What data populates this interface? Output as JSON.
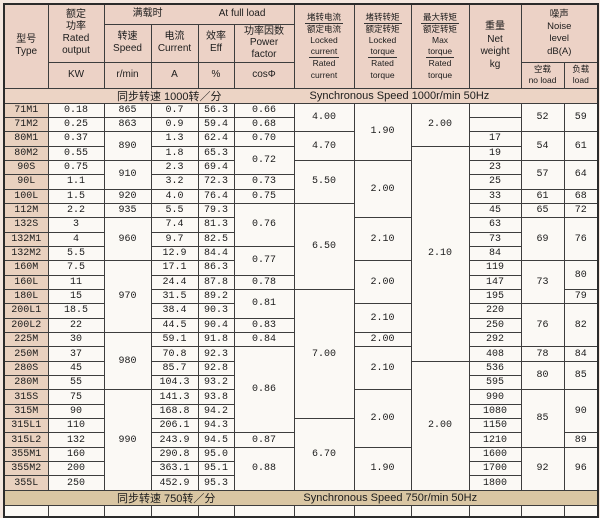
{
  "doc": {
    "kind": "motor-specification-table"
  },
  "colors": {
    "header_bg": "#ecd2c6",
    "type_col_bg": "#e9d1bf",
    "cell_bg": "#fbf9f5",
    "band_top_bg": "#ecd4c5",
    "band_bottom_bg": "#d9c6a3",
    "border": "#3d3d3d",
    "page_bg": "#f4e7df"
  },
  "header": {
    "type": {
      "cn": "型号",
      "en": "Type"
    },
    "rated": {
      "cn1": "额定",
      "cn2": "功率",
      "en1": "Rated",
      "en2": "output",
      "unit": "KW"
    },
    "full_load": {
      "cn": "满载时",
      "en": "At full load"
    },
    "speed": {
      "cn": "转速",
      "en": "Speed",
      "unit": "r/min"
    },
    "current": {
      "cn": "电流",
      "en": "Current",
      "unit": "A"
    },
    "eff": {
      "cn": "效率",
      "en": "Eff",
      "unit": "%"
    },
    "pf": {
      "cn": "功率因数",
      "en1": "Power",
      "en2": "factor",
      "unit": "cosΦ"
    },
    "locked_current": {
      "cn_num": "堵转电流",
      "cn_den": "额定电流",
      "en1": "Locked",
      "en2": "current",
      "en3": "Rated",
      "en4": "current"
    },
    "locked_torque": {
      "cn_num": "堵转转矩",
      "cn_den": "额定转矩",
      "en1": "Locked",
      "en2": "torque",
      "en3": "Rated",
      "en4": "torque"
    },
    "max_torque": {
      "cn_num": "最大转矩",
      "cn_den": "额定转矩",
      "en1": "Max",
      "en2": "torque",
      "en3": "Rated",
      "en4": "torque"
    },
    "weight": {
      "cn": "重量",
      "en1": "Net",
      "en2": "weight",
      "unit": "kg"
    },
    "noise": {
      "cn": "噪声",
      "en1": "Noise",
      "en2": "level",
      "en3": "dB(A)",
      "no_load_cn": "空载",
      "no_load_en": "no load",
      "load_cn": "负载",
      "load_en": "load"
    }
  },
  "bands": {
    "top": {
      "cn": "同步转速  1000转／分",
      "en": "Synchronous Speed 1000r/min  50Hz"
    },
    "bottom": {
      "cn": "同步转速  750转／分",
      "en": "Synchronous Speed 750r/min  50Hz"
    }
  },
  "rows": [
    {
      "type": "71M1",
      "kw": "0.18",
      "current": "0.7",
      "eff": "56.3",
      "w": ""
    },
    {
      "type": "71M2",
      "kw": "0.25",
      "current": "0.9",
      "eff": "59.4",
      "w": ""
    },
    {
      "type": "80M1",
      "kw": "0.37",
      "current": "1.3",
      "eff": "62.4",
      "w": "17"
    },
    {
      "type": "80M2",
      "kw": "0.55",
      "current": "1.8",
      "eff": "65.3",
      "w": "19"
    },
    {
      "type": "90S",
      "kw": "0.75",
      "current": "2.3",
      "eff": "69.4",
      "w": "23"
    },
    {
      "type": "90L",
      "kw": "1.1",
      "current": "3.2",
      "eff": "72.3",
      "w": "25"
    },
    {
      "type": "100L",
      "kw": "1.5",
      "current": "4.0",
      "eff": "76.4",
      "w": "33"
    },
    {
      "type": "112M",
      "kw": "2.2",
      "current": "5.5",
      "eff": "79.3",
      "w": "45"
    },
    {
      "type": "132S",
      "kw": "3",
      "current": "7.4",
      "eff": "81.3",
      "w": "63"
    },
    {
      "type": "132M1",
      "kw": "4",
      "current": "9.7",
      "eff": "82.5",
      "w": "73"
    },
    {
      "type": "132M2",
      "kw": "5.5",
      "current": "12.9",
      "eff": "84.4",
      "w": "84"
    },
    {
      "type": "160M",
      "kw": "7.5",
      "current": "17.1",
      "eff": "86.3",
      "w": "119"
    },
    {
      "type": "160L",
      "kw": "11",
      "current": "24.4",
      "eff": "87.8",
      "w": "147"
    },
    {
      "type": "180L",
      "kw": "15",
      "current": "31.5",
      "eff": "89.2",
      "w": "195"
    },
    {
      "type": "200L1",
      "kw": "18.5",
      "current": "38.4",
      "eff": "90.3",
      "w": "220"
    },
    {
      "type": "200L2",
      "kw": "22",
      "current": "44.5",
      "eff": "90.4",
      "w": "250"
    },
    {
      "type": "225M",
      "kw": "30",
      "current": "59.1",
      "eff": "91.8",
      "w": "292"
    },
    {
      "type": "250M",
      "kw": "37",
      "current": "70.8",
      "eff": "92.3",
      "w": "408"
    },
    {
      "type": "280S",
      "kw": "45",
      "current": "85.7",
      "eff": "92.8",
      "w": "536"
    },
    {
      "type": "280M",
      "kw": "55",
      "current": "104.3",
      "eff": "93.2",
      "w": "595"
    },
    {
      "type": "315S",
      "kw": "75",
      "current": "141.3",
      "eff": "93.8",
      "w": "990"
    },
    {
      "type": "315M",
      "kw": "90",
      "current": "168.8",
      "eff": "94.2",
      "w": "1080"
    },
    {
      "type": "315L1",
      "kw": "110",
      "current": "206.1",
      "eff": "94.3",
      "w": "1150"
    },
    {
      "type": "315L2",
      "kw": "132",
      "current": "243.9",
      "eff": "94.5",
      "w": "1210"
    },
    {
      "type": "355M1",
      "kw": "160",
      "current": "290.8",
      "eff": "95.0",
      "w": "1600"
    },
    {
      "type": "355M2",
      "kw": "200",
      "current": "363.1",
      "eff": "95.1",
      "w": "1700"
    },
    {
      "type": "355L",
      "kw": "250",
      "current": "452.9",
      "eff": "95.3",
      "w": "1800"
    }
  ],
  "merged": {
    "speed": [
      {
        "at": 0,
        "span": 1,
        "v": "865"
      },
      {
        "at": 1,
        "span": 1,
        "v": "863"
      },
      {
        "at": 2,
        "span": 2,
        "v": "890"
      },
      {
        "at": 4,
        "span": 2,
        "v": "910"
      },
      {
        "at": 6,
        "span": 1,
        "v": "920"
      },
      {
        "at": 7,
        "span": 1,
        "v": "935"
      },
      {
        "at": 8,
        "span": 3,
        "v": "960"
      },
      {
        "at": 11,
        "span": 5,
        "v": "970"
      },
      {
        "at": 16,
        "span": 4,
        "v": "980"
      },
      {
        "at": 20,
        "span": 7,
        "v": "990"
      }
    ],
    "cos": [
      {
        "at": 0,
        "span": 1,
        "v": "0.66"
      },
      {
        "at": 1,
        "span": 1,
        "v": "0.68"
      },
      {
        "at": 2,
        "span": 1,
        "v": "0.70"
      },
      {
        "at": 3,
        "span": 2,
        "v": "0.72"
      },
      {
        "at": 5,
        "span": 1,
        "v": "0.73"
      },
      {
        "at": 6,
        "span": 1,
        "v": "0.75"
      },
      {
        "at": 7,
        "span": 3,
        "v": "0.76"
      },
      {
        "at": 10,
        "span": 2,
        "v": "0.77"
      },
      {
        "at": 12,
        "span": 1,
        "v": "0.78"
      },
      {
        "at": 13,
        "span": 2,
        "v": "0.81"
      },
      {
        "at": 15,
        "span": 1,
        "v": "0.83"
      },
      {
        "at": 16,
        "span": 1,
        "v": "0.84"
      },
      {
        "at": 17,
        "span": 6,
        "v": "0.86"
      },
      {
        "at": 23,
        "span": 1,
        "v": "0.87"
      },
      {
        "at": 24,
        "span": 3,
        "v": "0.88"
      }
    ],
    "locked_current": [
      {
        "at": 0,
        "span": 2,
        "v": "4.00"
      },
      {
        "at": 2,
        "span": 2,
        "v": "4.70"
      },
      {
        "at": 4,
        "span": 3,
        "v": "5.50"
      },
      {
        "at": 7,
        "span": 6,
        "v": "6.50"
      },
      {
        "at": 13,
        "span": 9,
        "v": "7.00"
      },
      {
        "at": 22,
        "span": 5,
        "v": "6.70"
      }
    ],
    "locked_torque": [
      {
        "at": 0,
        "span": 4,
        "v": "1.90"
      },
      {
        "at": 4,
        "span": 4,
        "v": "2.00"
      },
      {
        "at": 8,
        "span": 3,
        "v": "2.10"
      },
      {
        "at": 11,
        "span": 3,
        "v": "2.00"
      },
      {
        "at": 14,
        "span": 2,
        "v": "2.10"
      },
      {
        "at": 16,
        "span": 1,
        "v": "2.00"
      },
      {
        "at": 17,
        "span": 3,
        "v": "2.10"
      },
      {
        "at": 20,
        "span": 4,
        "v": "2.00"
      },
      {
        "at": 24,
        "span": 3,
        "v": "1.90"
      }
    ],
    "max_torque": [
      {
        "at": 0,
        "span": 3,
        "v": "2.00"
      },
      {
        "at": 3,
        "span": 15,
        "v": "2.10"
      },
      {
        "at": 18,
        "span": 9,
        "v": "2.00"
      }
    ],
    "noise_no_load": [
      {
        "at": 0,
        "span": 2,
        "v": "52"
      },
      {
        "at": 2,
        "span": 2,
        "v": "54"
      },
      {
        "at": 4,
        "span": 2,
        "v": "57"
      },
      {
        "at": 6,
        "span": 1,
        "v": "61"
      },
      {
        "at": 7,
        "span": 1,
        "v": "65"
      },
      {
        "at": 8,
        "span": 3,
        "v": "69"
      },
      {
        "at": 11,
        "span": 3,
        "v": "73"
      },
      {
        "at": 14,
        "span": 3,
        "v": "76"
      },
      {
        "at": 17,
        "span": 1,
        "v": "78"
      },
      {
        "at": 18,
        "span": 2,
        "v": "80"
      },
      {
        "at": 20,
        "span": 4,
        "v": "85"
      },
      {
        "at": 24,
        "span": 3,
        "v": "92"
      }
    ],
    "noise_load": [
      {
        "at": 0,
        "span": 2,
        "v": "59"
      },
      {
        "at": 2,
        "span": 2,
        "v": "61"
      },
      {
        "at": 4,
        "span": 2,
        "v": "64"
      },
      {
        "at": 6,
        "span": 1,
        "v": "68"
      },
      {
        "at": 7,
        "span": 1,
        "v": "72"
      },
      {
        "at": 8,
        "span": 3,
        "v": "76"
      },
      {
        "at": 11,
        "span": 2,
        "v": "80"
      },
      {
        "at": 13,
        "span": 1,
        "v": "79"
      },
      {
        "at": 14,
        "span": 3,
        "v": "82"
      },
      {
        "at": 17,
        "span": 1,
        "v": "84"
      },
      {
        "at": 18,
        "span": 2,
        "v": "85"
      },
      {
        "at": 20,
        "span": 3,
        "v": "90"
      },
      {
        "at": 23,
        "span": 1,
        "v": "89"
      },
      {
        "at": 24,
        "span": 3,
        "v": "96"
      }
    ]
  }
}
